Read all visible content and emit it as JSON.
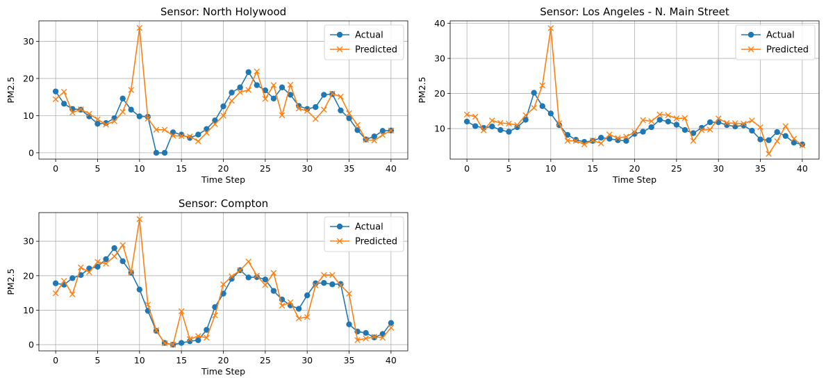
{
  "chart_data": [
    {
      "type": "line",
      "title": "Sensor: North Holywood",
      "xlabel": "Time Step",
      "ylabel": "PM2.5",
      "xlim": [
        -2,
        42
      ],
      "ylim": [
        -1.7,
        35.5
      ],
      "xticks": [
        0,
        5,
        10,
        15,
        20,
        25,
        30,
        35,
        40
      ],
      "yticks": [
        0,
        10,
        20,
        30
      ],
      "grid": true,
      "legend": "top-right",
      "series": [
        {
          "name": "Actual",
          "color": "#1f77b4",
          "marker": "circle",
          "values": [
            16.5,
            13.2,
            11.8,
            11.6,
            9.8,
            7.8,
            8.0,
            9.3,
            14.6,
            11.6,
            9.8,
            9.7,
            0.0,
            0.0,
            5.5,
            4.9,
            4.0,
            4.9,
            6.4,
            8.7,
            12.5,
            16.2,
            17.6,
            21.7,
            18.2,
            16.8,
            14.6,
            17.6,
            15.6,
            12.6,
            11.8,
            12.3,
            15.6,
            15.8,
            11.4,
            9.3,
            6.1,
            3.6,
            4.4,
            5.9,
            6.0
          ]
        },
        {
          "name": "Predicted",
          "color": "#ff7f0e",
          "marker": "x",
          "values": [
            14.4,
            16.4,
            10.8,
            11.7,
            10.5,
            9.0,
            7.6,
            8.5,
            11.0,
            16.9,
            33.6,
            9.2,
            6.2,
            6.2,
            4.6,
            4.5,
            4.4,
            3.1,
            5.4,
            7.7,
            10.0,
            14.0,
            16.3,
            16.9,
            21.9,
            14.5,
            18.2,
            10.1,
            18.3,
            11.9,
            11.3,
            9.1,
            11.6,
            15.9,
            15.1,
            10.6,
            7.5,
            3.5,
            3.3,
            4.8,
            6.0
          ]
        }
      ]
    },
    {
      "type": "line",
      "title": "Sensor: Los Angeles - N. Main Street",
      "xlabel": "Time Step",
      "ylabel": "PM2.5",
      "xlim": [
        -2,
        42
      ],
      "ylim": [
        1.3,
        40.7
      ],
      "xticks": [
        0,
        5,
        10,
        15,
        20,
        25,
        30,
        35,
        40
      ],
      "yticks": [
        10,
        20,
        30,
        40
      ],
      "grid": true,
      "legend": "top-right",
      "series": [
        {
          "name": "Actual",
          "color": "#1f77b4",
          "marker": "circle",
          "values": [
            12.0,
            10.7,
            10.2,
            10.6,
            9.6,
            9.1,
            10.4,
            12.5,
            20.2,
            16.4,
            14.3,
            11.0,
            8.2,
            6.8,
            6.2,
            6.5,
            7.4,
            7.1,
            6.7,
            6.5,
            8.5,
            9.1,
            10.4,
            12.5,
            12.0,
            11.1,
            9.6,
            8.7,
            10.2,
            11.8,
            11.8,
            11.0,
            10.6,
            10.9,
            9.4,
            6.9,
            6.7,
            9.0,
            7.9,
            6.0,
            5.5
          ]
        },
        {
          "name": "Predicted",
          "color": "#ff7f0e",
          "marker": "x",
          "values": [
            14.0,
            13.4,
            9.5,
            12.3,
            11.6,
            11.4,
            11.0,
            13.8,
            15.9,
            22.3,
            38.6,
            11.5,
            6.5,
            6.5,
            5.5,
            6.6,
            5.8,
            8.3,
            7.3,
            7.7,
            9.0,
            12.4,
            12.1,
            14.0,
            13.8,
            12.9,
            13.0,
            6.5,
            9.6,
            9.7,
            12.9,
            11.6,
            11.5,
            11.4,
            12.3,
            10.4,
            2.8,
            6.4,
            10.7,
            7.1,
            5.2
          ]
        }
      ]
    },
    {
      "type": "line",
      "title": "Sensor: Compton",
      "xlabel": "Time Step",
      "ylabel": "PM2.5",
      "xlim": [
        -2,
        42
      ],
      "ylim": [
        -1.8,
        38.3
      ],
      "xticks": [
        0,
        5,
        10,
        15,
        20,
        25,
        30,
        35,
        40
      ],
      "yticks": [
        0,
        10,
        20,
        30
      ],
      "grid": true,
      "legend": "top-right",
      "series": [
        {
          "name": "Actual",
          "color": "#1f77b4",
          "marker": "circle",
          "values": [
            17.8,
            17.4,
            19.3,
            20.2,
            22.1,
            22.6,
            24.8,
            28.0,
            24.2,
            20.9,
            16.0,
            9.8,
            4.0,
            0.5,
            0.0,
            0.5,
            1.0,
            1.3,
            4.3,
            10.9,
            14.8,
            19.1,
            21.6,
            19.5,
            19.6,
            18.9,
            15.6,
            13.1,
            11.4,
            10.4,
            14.3,
            17.8,
            17.9,
            17.5,
            17.6,
            5.9,
            3.8,
            3.4,
            2.1,
            3.1,
            6.3
          ]
        },
        {
          "name": "Predicted",
          "color": "#ff7f0e",
          "marker": "x",
          "values": [
            14.9,
            18.5,
            14.6,
            22.4,
            21.0,
            24.0,
            23.5,
            25.6,
            28.9,
            20.9,
            36.4,
            11.6,
            4.2,
            0.4,
            0.0,
            9.7,
            1.6,
            2.5,
            2.0,
            8.5,
            17.5,
            19.8,
            21.6,
            24.1,
            20.0,
            17.3,
            20.8,
            11.3,
            12.3,
            7.6,
            8.0,
            17.2,
            20.2,
            20.2,
            17.2,
            14.8,
            1.3,
            1.8,
            2.3,
            2.0,
            4.9
          ]
        }
      ]
    }
  ]
}
